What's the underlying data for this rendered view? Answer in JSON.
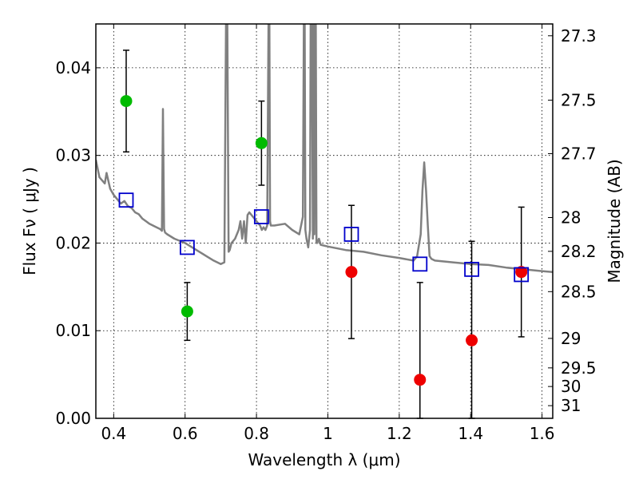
{
  "chart_data": {
    "type": "scatter",
    "title": "",
    "xlabel": "Wavelength  λ (μm)",
    "ylabel": "Flux  Fν  ( μJy )",
    "y2label": "Magnitude (AB)",
    "xlim": [
      0.35,
      1.63
    ],
    "ylim": [
      0.0,
      0.045
    ],
    "grid": true,
    "x_ticks": [
      0.4,
      0.6,
      0.8,
      1.0,
      1.2,
      1.4,
      1.6
    ],
    "x_tick_labels": [
      "0.4",
      "0.6",
      "0.8",
      "1",
      "1.2",
      "1.4",
      "1.6"
    ],
    "y_ticks": [
      0.0,
      0.01,
      0.02,
      0.03,
      0.04
    ],
    "y_tick_labels": [
      "0.00",
      "0.01",
      "0.02",
      "0.03",
      "0.04"
    ],
    "mag_ticks": [
      27.3,
      27.5,
      27.7,
      28,
      28.2,
      28.5,
      29,
      29.5,
      30,
      31
    ],
    "mag_tick_labels": [
      "27.3",
      "27.5",
      "27.7",
      "28",
      "28.2",
      "28.5",
      "29",
      "29.5",
      "30",
      "31"
    ],
    "series": [
      {
        "color": "#00bb00",
        "marker": "circle",
        "points": [
          {
            "x": 0.435,
            "y": 0.0362,
            "err": 0.0058
          },
          {
            "x": 0.606,
            "y": 0.0122,
            "err": 0.0033
          },
          {
            "x": 0.814,
            "y": 0.0314,
            "err": 0.0048
          }
        ]
      },
      {
        "color": "#ee0000",
        "marker": "circle",
        "points": [
          {
            "x": 1.066,
            "y": 0.0167,
            "err": 0.0076
          },
          {
            "x": 1.258,
            "y": 0.0044,
            "err": 0.0111
          },
          {
            "x": 1.403,
            "y": 0.0089,
            "err": 0.0113
          },
          {
            "x": 1.542,
            "y": 0.0167,
            "err": 0.0074
          }
        ]
      },
      {
        "color": "#0000cc",
        "marker": "square",
        "points": [
          {
            "x": 0.435,
            "y": 0.0249
          },
          {
            "x": 0.606,
            "y": 0.0195
          },
          {
            "x": 0.814,
            "y": 0.023
          },
          {
            "x": 1.066,
            "y": 0.021
          },
          {
            "x": 1.258,
            "y": 0.0176
          },
          {
            "x": 1.403,
            "y": 0.017
          },
          {
            "x": 1.542,
            "y": 0.0164
          }
        ]
      }
    ],
    "model_spectrum": {
      "color": "#808080",
      "x": [
        0.35,
        0.36,
        0.375,
        0.38,
        0.39,
        0.4,
        0.41,
        0.42,
        0.43,
        0.44,
        0.45,
        0.46,
        0.47,
        0.48,
        0.49,
        0.5,
        0.51,
        0.52,
        0.53,
        0.535,
        0.538,
        0.541,
        0.544,
        0.55,
        0.57,
        0.6,
        0.62,
        0.64,
        0.66,
        0.68,
        0.7,
        0.71,
        0.715,
        0.718,
        0.722,
        0.725,
        0.73,
        0.74,
        0.75,
        0.755,
        0.76,
        0.765,
        0.77,
        0.775,
        0.78,
        0.79,
        0.8,
        0.81,
        0.815,
        0.82,
        0.825,
        0.83,
        0.834,
        0.836,
        0.838,
        0.84,
        0.85,
        0.88,
        0.9,
        0.92,
        0.93,
        0.933,
        0.935,
        0.937,
        0.94,
        0.945,
        0.95,
        0.952,
        0.955,
        0.958,
        0.96,
        0.962,
        0.964,
        0.966,
        0.968,
        0.97,
        0.975,
        0.98,
        1.0,
        1.05,
        1.1,
        1.15,
        1.2,
        1.24,
        1.25,
        1.26,
        1.265,
        1.27,
        1.275,
        1.28,
        1.285,
        1.29,
        1.3,
        1.35,
        1.4,
        1.45,
        1.5,
        1.55,
        1.6,
        1.63
      ],
      "y": [
        0.0295,
        0.0275,
        0.0268,
        0.028,
        0.0262,
        0.0255,
        0.025,
        0.0245,
        0.0248,
        0.0242,
        0.024,
        0.0235,
        0.0233,
        0.0228,
        0.0225,
        0.0222,
        0.022,
        0.0218,
        0.0216,
        0.0214,
        0.0353,
        0.0216,
        0.0212,
        0.021,
        0.0205,
        0.02,
        0.0195,
        0.019,
        0.0185,
        0.018,
        0.0176,
        0.0178,
        0.047,
        0.047,
        0.019,
        0.0192,
        0.02,
        0.0205,
        0.0215,
        0.0225,
        0.0205,
        0.0225,
        0.02,
        0.0232,
        0.0235,
        0.023,
        0.0225,
        0.022,
        0.0215,
        0.0218,
        0.0215,
        0.022,
        0.047,
        0.047,
        0.0225,
        0.022,
        0.022,
        0.0222,
        0.0215,
        0.021,
        0.023,
        0.047,
        0.047,
        0.0215,
        0.0205,
        0.0195,
        0.0215,
        0.047,
        0.047,
        0.0205,
        0.047,
        0.021,
        0.047,
        0.047,
        0.02,
        0.02,
        0.0205,
        0.0198,
        0.0196,
        0.0192,
        0.019,
        0.0186,
        0.0183,
        0.018,
        0.0185,
        0.021,
        0.026,
        0.0292,
        0.026,
        0.022,
        0.0185,
        0.0182,
        0.018,
        0.0178,
        0.0176,
        0.0175,
        0.0172,
        0.017,
        0.0168,
        0.0167
      ]
    }
  }
}
